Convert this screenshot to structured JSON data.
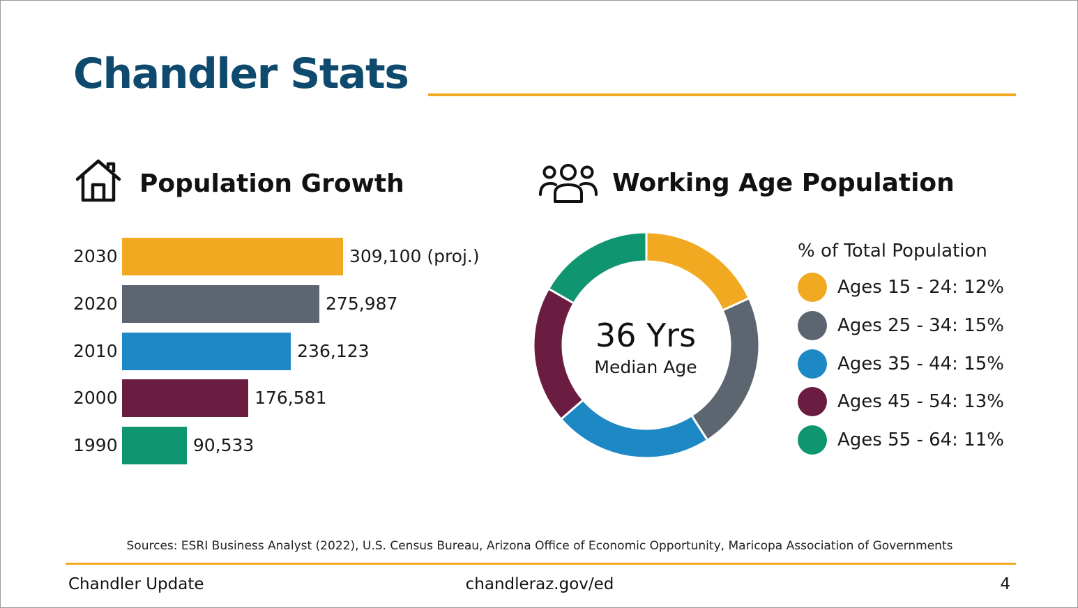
{
  "slide": {
    "title": "Chandler Stats",
    "sources": "Sources: ESRI Business Analyst (2022), U.S. Census Bureau, Arizona Office of Economic Opportunity, Maricopa Association of Governments",
    "footer_left": "Chandler Update",
    "footer_center": "chandleraz.gov/ed",
    "page_number": "4"
  },
  "population": {
    "heading": "Population Growth",
    "icon": "house-icon"
  },
  "working_age": {
    "heading": "Working Age Population",
    "icon": "people-group-icon",
    "center_value": "36 Yrs",
    "center_label": "Median Age",
    "legend_title": "% of Total Population"
  },
  "chart_data": [
    {
      "type": "bar",
      "orientation": "horizontal",
      "title": "Population Growth",
      "categories": [
        "2030",
        "2020",
        "2010",
        "2000",
        "1990"
      ],
      "values": [
        309100,
        275987,
        236123,
        176581,
        90533
      ],
      "value_labels": [
        "309,100 (proj.)",
        "275,987",
        "236,123",
        "176,581",
        "90,533"
      ],
      "colors": [
        "#f2a922",
        "#5c6670",
        "#1e88c4",
        "#6b1d41",
        "#0f9670"
      ],
      "xlim": [
        0,
        309100
      ],
      "grid": false
    },
    {
      "type": "pie",
      "title": "Working Age Population",
      "donut": true,
      "categories": [
        "Ages 15 - 24",
        "Ages 25 - 34",
        "Ages 35 - 44",
        "Ages 45 - 54",
        "Ages 55 - 64"
      ],
      "values": [
        12,
        15,
        15,
        13,
        11
      ],
      "legend_labels": [
        "Ages 15 - 24: 12%",
        "Ages 25 - 34: 15%",
        "Ages 35 - 44: 15%",
        "Ages 45 - 54: 13%",
        "Ages 55 - 64: 11%"
      ],
      "colors": [
        "#f2a922",
        "#5c6670",
        "#1e88c4",
        "#6b1d41",
        "#0f9670"
      ],
      "legend_position": "right"
    }
  ]
}
